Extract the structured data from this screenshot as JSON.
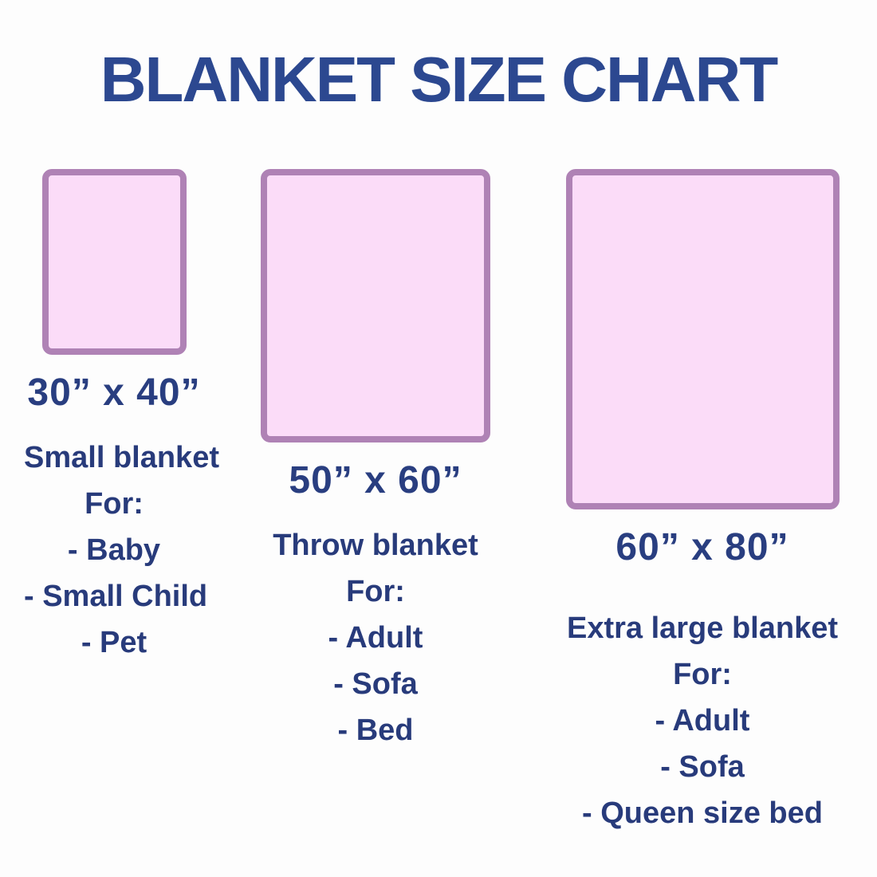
{
  "title": "BLANKET SIZE CHART",
  "colors": {
    "title_text": "#2c4890",
    "body_text": "#283b7b",
    "blanket_fill": "#fbdcf8",
    "blanket_border": "#af82b5",
    "background": "#fdfdfd"
  },
  "blankets": [
    {
      "size": "30” x 40”",
      "name": "Small blanket",
      "for_label": "For:",
      "uses": [
        "- Baby",
        "- Small Child",
        "- Pet"
      ]
    },
    {
      "size": "50” x 60”",
      "name": "Throw blanket",
      "for_label": "For:",
      "uses": [
        "- Adult",
        "- Sofa",
        "- Bed"
      ]
    },
    {
      "size": "60” x 80”",
      "name": "Extra large blanket",
      "for_label": "For:",
      "uses": [
        "- Adult",
        "- Sofa",
        "- Queen size bed"
      ]
    }
  ]
}
